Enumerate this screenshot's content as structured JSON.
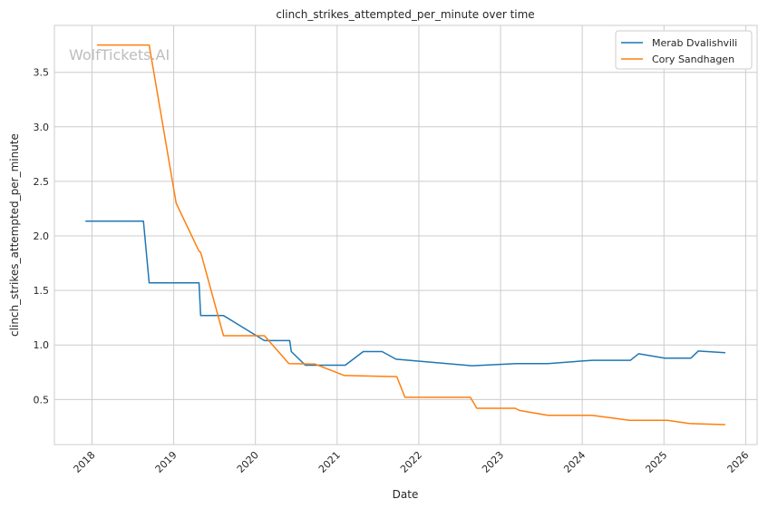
{
  "chart_data": {
    "type": "line",
    "title": "clinch_strikes_attempted_per_minute over time",
    "xlabel": "Date",
    "ylabel": "clinch_strikes_attempted_per_minute",
    "xlim": [
      2017.54,
      2026.14
    ],
    "ylim": [
      0.087,
      3.93
    ],
    "x_ticks": [
      2018,
      2019,
      2020,
      2021,
      2022,
      2023,
      2024,
      2025,
      2026
    ],
    "x_tick_labels": [
      "2018",
      "2019",
      "2020",
      "2021",
      "2022",
      "2023",
      "2024",
      "2025",
      "2026"
    ],
    "y_ticks": [
      0.5,
      1.0,
      1.5,
      2.0,
      2.5,
      3.0,
      3.5
    ],
    "y_tick_labels": [
      "0.5",
      "1.0",
      "1.5",
      "2.0",
      "2.5",
      "3.0",
      "3.5"
    ],
    "grid": true,
    "legend_position": "top-right",
    "watermark": "WolfTickets.AI",
    "series": [
      {
        "name": "Merab Dvalishvili",
        "color": "#1f77b4",
        "x": [
          2017.92,
          2018.63,
          2018.7,
          2019.31,
          2019.33,
          2019.61,
          2020.11,
          2020.42,
          2020.44,
          2020.61,
          2021.1,
          2021.32,
          2021.55,
          2021.72,
          2022.65,
          2023.19,
          2023.58,
          2024.12,
          2024.59,
          2024.69,
          2025.01,
          2025.33,
          2025.42,
          2025.75
        ],
        "y": [
          2.135,
          2.135,
          1.57,
          1.57,
          1.27,
          1.27,
          1.04,
          1.04,
          0.94,
          0.815,
          0.815,
          0.94,
          0.94,
          0.87,
          0.81,
          0.83,
          0.83,
          0.86,
          0.86,
          0.92,
          0.88,
          0.88,
          0.945,
          0.93
        ]
      },
      {
        "name": "Cory Sandhagen",
        "color": "#ff7f0e",
        "x": [
          2018.06,
          2018.7,
          2019.03,
          2019.31,
          2019.33,
          2019.61,
          2020.11,
          2020.41,
          2020.73,
          2021.09,
          2021.73,
          2021.83,
          2022.63,
          2022.71,
          2023.18,
          2023.23,
          2023.58,
          2024.12,
          2024.58,
          2025.04,
          2025.31,
          2025.75
        ],
        "y": [
          3.75,
          3.75,
          2.3,
          1.86,
          1.85,
          1.085,
          1.085,
          0.83,
          0.825,
          0.72,
          0.71,
          0.52,
          0.52,
          0.42,
          0.42,
          0.4,
          0.355,
          0.355,
          0.31,
          0.31,
          0.28,
          0.27
        ]
      }
    ]
  }
}
